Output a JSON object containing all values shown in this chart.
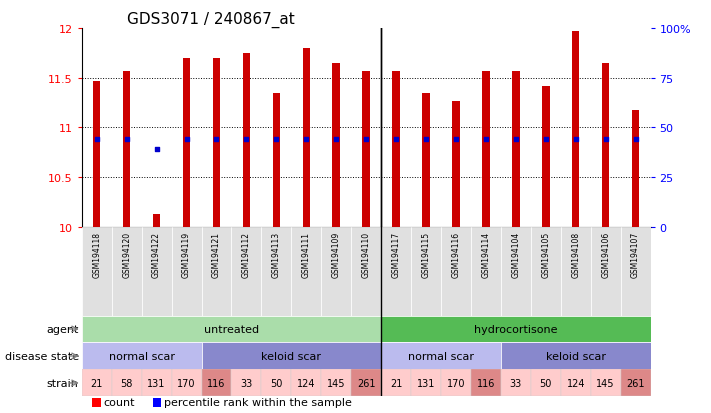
{
  "title": "GDS3071 / 240867_at",
  "samples": [
    "GSM194118",
    "GSM194120",
    "GSM194122",
    "GSM194119",
    "GSM194121",
    "GSM194112",
    "GSM194113",
    "GSM194111",
    "GSM194109",
    "GSM194110",
    "GSM194117",
    "GSM194115",
    "GSM194116",
    "GSM194114",
    "GSM194104",
    "GSM194105",
    "GSM194108",
    "GSM194106",
    "GSM194107"
  ],
  "counts": [
    11.47,
    11.57,
    10.13,
    11.7,
    11.7,
    11.75,
    11.35,
    11.8,
    11.65,
    11.57,
    11.57,
    11.35,
    11.27,
    11.57,
    11.57,
    11.42,
    11.97,
    11.65,
    11.17
  ],
  "percentile_vals": [
    10.88,
    10.88,
    10.78,
    10.88,
    10.88,
    10.88,
    10.88,
    10.88,
    10.88,
    10.88,
    10.88,
    10.88,
    10.88,
    10.88,
    10.88,
    10.88,
    10.88,
    10.88,
    10.88
  ],
  "ylim": [
    10,
    12
  ],
  "yticks": [
    10,
    10.5,
    11,
    11.5,
    12
  ],
  "right_yticks": [
    0,
    25,
    50,
    75,
    100
  ],
  "bar_color": "#cc0000",
  "percentile_color": "#0000cc",
  "agent_groups": [
    {
      "label": "untreated",
      "start": 0,
      "end": 10,
      "color": "#aaddaa"
    },
    {
      "label": "hydrocortisone",
      "start": 10,
      "end": 19,
      "color": "#55bb55"
    }
  ],
  "disease_groups": [
    {
      "label": "normal scar",
      "start": 0,
      "end": 4,
      "color": "#bbbbee"
    },
    {
      "label": "keloid scar",
      "start": 4,
      "end": 10,
      "color": "#8888cc"
    },
    {
      "label": "normal scar",
      "start": 10,
      "end": 14,
      "color": "#bbbbee"
    },
    {
      "label": "keloid scar",
      "start": 14,
      "end": 19,
      "color": "#8888cc"
    }
  ],
  "strain_labels": [
    "21",
    "58",
    "131",
    "170",
    "116",
    "33",
    "50",
    "124",
    "145",
    "261",
    "21",
    "131",
    "170",
    "116",
    "33",
    "50",
    "124",
    "145",
    "261"
  ],
  "strain_highlighted": [
    4,
    9,
    13,
    18
  ],
  "strain_highlight_color": "#dd8888",
  "strain_normal_color": "#ffcccc",
  "row_labels": [
    "agent",
    "disease state",
    "strain"
  ]
}
